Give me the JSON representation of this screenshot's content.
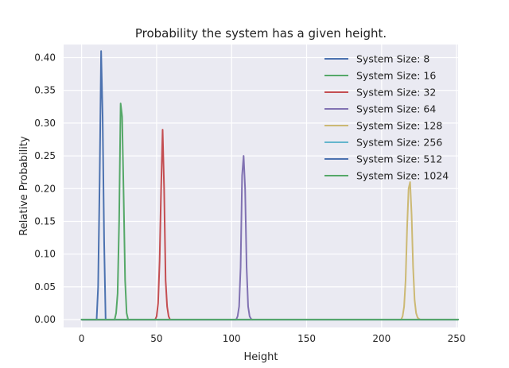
{
  "chart_data": {
    "type": "line",
    "title": "Probability the system has a given height.",
    "xlabel": "Height",
    "ylabel": "Relative Probability",
    "xlim": [
      -12,
      251
    ],
    "ylim": [
      -0.012,
      0.42
    ],
    "xticks": [
      0,
      50,
      100,
      150,
      200,
      250
    ],
    "yticks": [
      0.0,
      0.05,
      0.1,
      0.15,
      0.2,
      0.25,
      0.3,
      0.35,
      0.4
    ],
    "xtick_labels": [
      "0",
      "50",
      "100",
      "150",
      "200",
      "250"
    ],
    "ytick_labels": [
      "0.00",
      "0.05",
      "0.10",
      "0.15",
      "0.20",
      "0.25",
      "0.30",
      "0.35",
      "0.40"
    ],
    "grid": true,
    "legend_position": "top-right",
    "series": [
      {
        "name": "System Size: 8",
        "color": "#4c72b0",
        "x": [
          0,
          10,
          11,
          12,
          13,
          14,
          15,
          16
        ],
        "y": [
          0,
          0,
          0.05,
          0.21,
          0.41,
          0.31,
          0.12,
          0
        ]
      },
      {
        "name": "System Size: 16",
        "color": "#55a868",
        "x": [
          0,
          22,
          23,
          24,
          25,
          26,
          27,
          28,
          29,
          30,
          31
        ],
        "y": [
          0,
          0,
          0.01,
          0.04,
          0.15,
          0.33,
          0.31,
          0.19,
          0.06,
          0.01,
          0
        ]
      },
      {
        "name": "System Size: 32",
        "color": "#c44e52",
        "x": [
          0,
          49,
          50,
          51,
          52,
          53,
          54,
          55,
          56,
          57,
          58,
          59
        ],
        "y": [
          0,
          0,
          0.005,
          0.025,
          0.09,
          0.2,
          0.29,
          0.2,
          0.06,
          0.02,
          0.005,
          0
        ]
      },
      {
        "name": "System Size: 64",
        "color": "#8172b2",
        "x": [
          0,
          103,
          104,
          105,
          106,
          107,
          108,
          109,
          110,
          111,
          112,
          113,
          114
        ],
        "y": [
          0,
          0,
          0.005,
          0.02,
          0.08,
          0.22,
          0.25,
          0.2,
          0.08,
          0.02,
          0.005,
          0.001,
          0
        ]
      },
      {
        "name": "System Size: 128",
        "color": "#ccb974",
        "x": [
          0,
          213,
          214,
          215,
          216,
          217,
          218,
          219,
          220,
          221,
          222,
          223,
          224,
          225,
          226,
          251
        ],
        "y": [
          0,
          0,
          0.005,
          0.02,
          0.06,
          0.14,
          0.2,
          0.21,
          0.16,
          0.08,
          0.03,
          0.01,
          0.003,
          0.001,
          0,
          0
        ]
      },
      {
        "name": "System Size: 256",
        "color": "#64b5cd",
        "x": [
          0,
          251
        ],
        "y": [
          0,
          0
        ]
      },
      {
        "name": "System Size: 512",
        "color": "#4c72b0",
        "x": [
          0,
          251
        ],
        "y": [
          0,
          0
        ]
      },
      {
        "name": "System Size: 1024",
        "color": "#55a868",
        "x": [
          0,
          251
        ],
        "y": [
          0,
          0
        ]
      }
    ]
  }
}
